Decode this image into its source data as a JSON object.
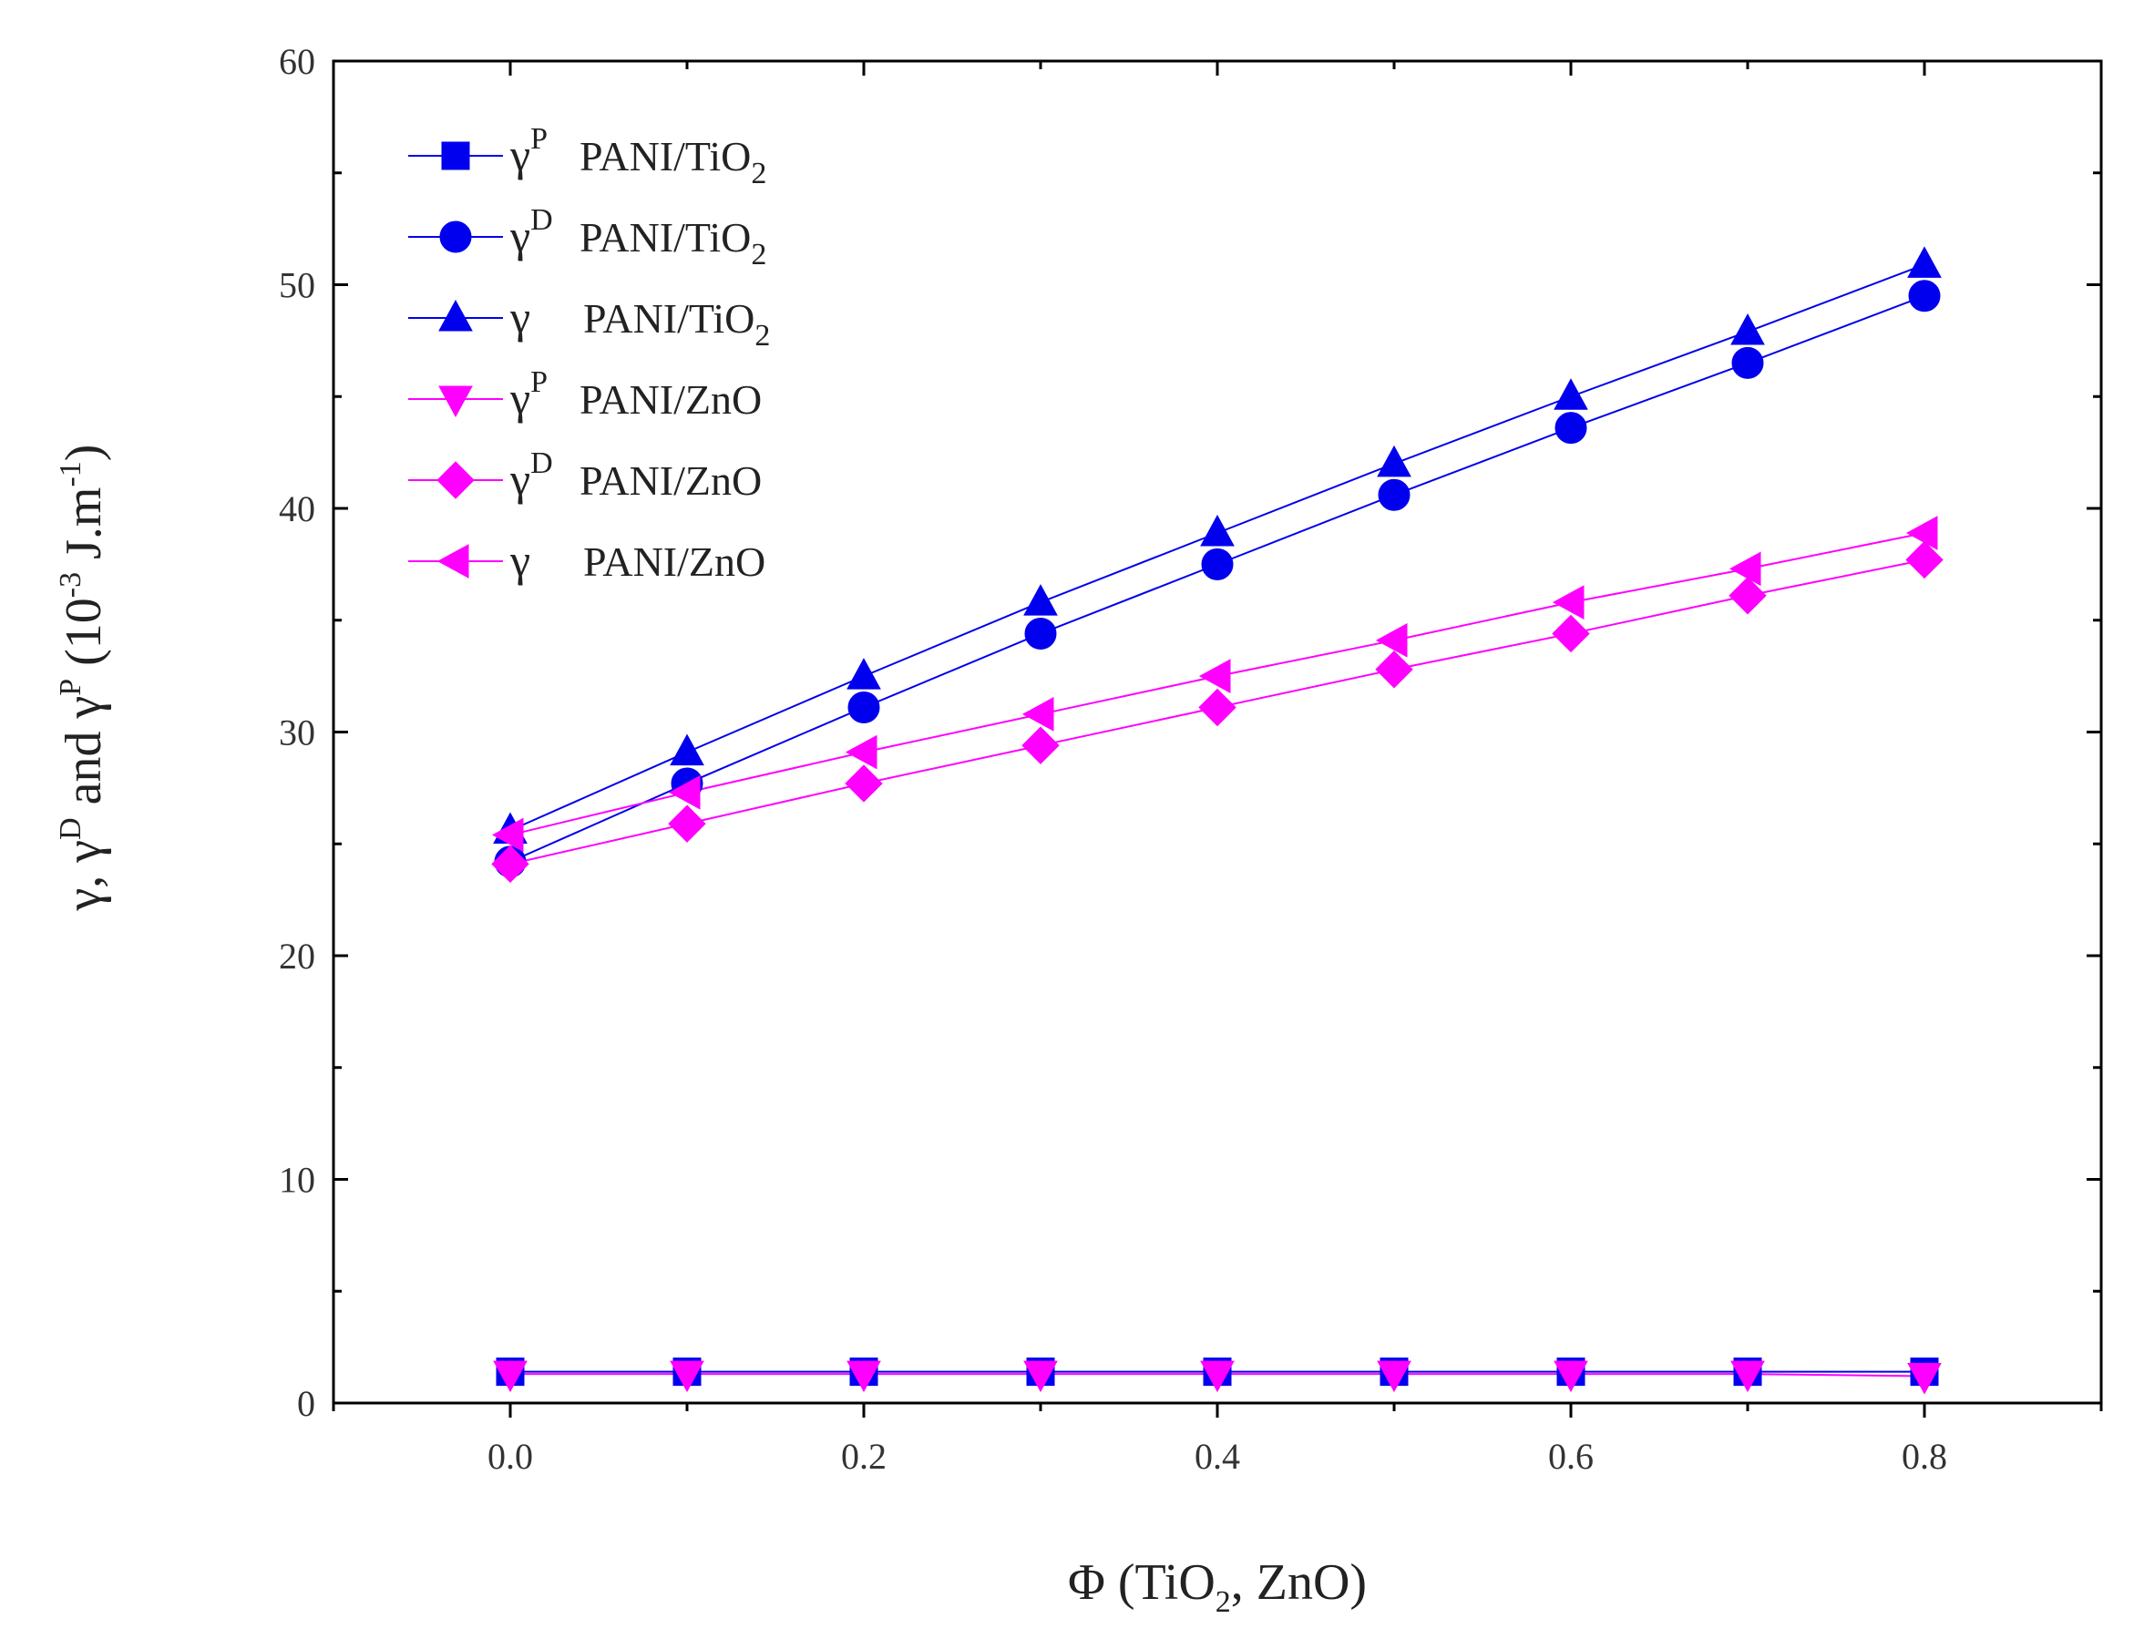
{
  "chart_data": {
    "type": "line",
    "title": "",
    "xlabel": {
      "prefix": "Φ (TiO",
      "sub": "2",
      "suffix": ", ZnO)"
    },
    "ylabel": {
      "p1": "γ, γ",
      "sup1": "D",
      "p2": " and γ",
      "sup2": "P",
      "p3": " (10",
      "sup3": "-3",
      "p4": " J.m",
      "sup4": "-1",
      "p5": ")"
    },
    "xlim": [
      -0.1,
      0.9
    ],
    "ylim": [
      0,
      60
    ],
    "xticks": [
      0.0,
      0.2,
      0.4,
      0.6,
      0.8
    ],
    "xtick_labels": [
      "0.0",
      "0.2",
      "0.4",
      "0.6",
      "0.8"
    ],
    "yticks": [
      0,
      10,
      20,
      30,
      40,
      50,
      60
    ],
    "ytick_labels": [
      "0",
      "10",
      "20",
      "30",
      "40",
      "50",
      "60"
    ],
    "grid": false,
    "legend_position": "top-left",
    "x": [
      0.0,
      0.1,
      0.2,
      0.3,
      0.4,
      0.5,
      0.6,
      0.7,
      0.8
    ],
    "series": [
      {
        "id": "gp-tio2",
        "symbol": "γ",
        "sup": "P",
        "material": "PANI/TiO",
        "material_sub": "2",
        "marker": "square",
        "color": "#0000ee",
        "values": [
          1.4,
          1.4,
          1.4,
          1.4,
          1.4,
          1.4,
          1.4,
          1.4,
          1.4
        ]
      },
      {
        "id": "gd-tio2",
        "symbol": "γ",
        "sup": "D",
        "material": "PANI/TiO",
        "material_sub": "2",
        "marker": "circle",
        "color": "#0000ee",
        "values": [
          24.2,
          27.7,
          31.1,
          34.4,
          37.5,
          40.6,
          43.6,
          46.5,
          49.5
        ]
      },
      {
        "id": "g-tio2",
        "symbol": "γ",
        "sup": "",
        "material": "PANI/TiO",
        "material_sub": "2",
        "marker": "triangle-up",
        "color": "#0000ee",
        "values": [
          25.6,
          29.1,
          32.5,
          35.8,
          38.9,
          42.0,
          45.0,
          47.9,
          50.9
        ]
      },
      {
        "id": "gp-zno",
        "symbol": "γ",
        "sup": "P",
        "material": "PANI/ZnO",
        "material_sub": "",
        "marker": "triangle-down",
        "color": "#ff00ff",
        "values": [
          1.3,
          1.3,
          1.3,
          1.3,
          1.3,
          1.3,
          1.3,
          1.3,
          1.2
        ]
      },
      {
        "id": "gd-zno",
        "symbol": "γ",
        "sup": "D",
        "material": "PANI/ZnO",
        "material_sub": "",
        "marker": "diamond",
        "color": "#ff00ff",
        "values": [
          24.1,
          25.9,
          27.7,
          29.4,
          31.1,
          32.8,
          34.4,
          36.1,
          37.7
        ]
      },
      {
        "id": "g-zno",
        "symbol": "γ",
        "sup": "",
        "material": "PANI/ZnO",
        "material_sub": "",
        "marker": "triangle-left",
        "color": "#ff00ff",
        "values": [
          25.4,
          27.3,
          29.1,
          30.8,
          32.5,
          34.1,
          35.8,
          37.3,
          38.9
        ]
      }
    ]
  }
}
